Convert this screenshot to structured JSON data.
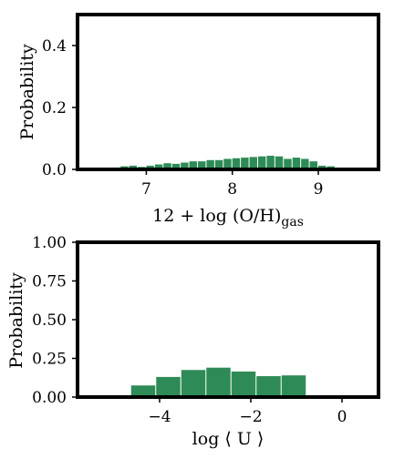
{
  "chart_data": [
    {
      "type": "bar",
      "xlabel": "12 + log (O/H)",
      "xlabel_subscript": "gas",
      "ylabel": "Probability",
      "xlim": [
        6.2,
        9.7
      ],
      "ylim": [
        0.0,
        0.5
      ],
      "xticks": [
        7,
        8,
        9
      ],
      "yticks": [
        0.0,
        0.2,
        0.4
      ],
      "ytick_labels": [
        "0.0",
        "0.2",
        "0.4"
      ],
      "bar_color": "#2e8b57",
      "bin_width": 0.1,
      "bins": [
        {
          "x": 6.55,
          "y": 0.004
        },
        {
          "x": 6.65,
          "y": 0.006
        },
        {
          "x": 6.75,
          "y": 0.01
        },
        {
          "x": 6.85,
          "y": 0.012
        },
        {
          "x": 6.95,
          "y": 0.008
        },
        {
          "x": 7.05,
          "y": 0.012
        },
        {
          "x": 7.15,
          "y": 0.016
        },
        {
          "x": 7.25,
          "y": 0.02
        },
        {
          "x": 7.35,
          "y": 0.018
        },
        {
          "x": 7.45,
          "y": 0.022
        },
        {
          "x": 7.55,
          "y": 0.026
        },
        {
          "x": 7.65,
          "y": 0.026
        },
        {
          "x": 7.75,
          "y": 0.03
        },
        {
          "x": 7.85,
          "y": 0.03
        },
        {
          "x": 7.95,
          "y": 0.034
        },
        {
          "x": 8.05,
          "y": 0.036
        },
        {
          "x": 8.15,
          "y": 0.038
        },
        {
          "x": 8.25,
          "y": 0.04
        },
        {
          "x": 8.35,
          "y": 0.042
        },
        {
          "x": 8.45,
          "y": 0.044
        },
        {
          "x": 8.55,
          "y": 0.042
        },
        {
          "x": 8.65,
          "y": 0.034
        },
        {
          "x": 8.75,
          "y": 0.038
        },
        {
          "x": 8.85,
          "y": 0.034
        },
        {
          "x": 8.95,
          "y": 0.026
        },
        {
          "x": 9.05,
          "y": 0.012
        },
        {
          "x": 9.15,
          "y": 0.01
        },
        {
          "x": 9.25,
          "y": 0.004
        },
        {
          "x": 9.35,
          "y": 0.002
        }
      ]
    },
    {
      "type": "bar",
      "xlabel": "log ⟨ U ⟩",
      "ylabel": "Probability",
      "xlim": [
        -5.8,
        0.8
      ],
      "ylim": [
        0.0,
        1.0
      ],
      "xticks": [
        -4,
        -2,
        0
      ],
      "xtick_labels": [
        "−4",
        "−2",
        "0"
      ],
      "yticks": [
        0.0,
        0.25,
        0.5,
        0.75,
        1.0
      ],
      "ytick_labels": [
        "0.00",
        "0.25",
        "0.50",
        "0.75",
        "1.00"
      ],
      "bar_color": "#2e8b57",
      "bin_width": 0.55,
      "bins": [
        {
          "x": -4.9,
          "y": 0.01
        },
        {
          "x": -4.35,
          "y": 0.075
        },
        {
          "x": -3.8,
          "y": 0.13
        },
        {
          "x": -3.25,
          "y": 0.175
        },
        {
          "x": -2.7,
          "y": 0.19
        },
        {
          "x": -2.15,
          "y": 0.165
        },
        {
          "x": -1.6,
          "y": 0.135
        },
        {
          "x": -1.05,
          "y": 0.14
        }
      ]
    }
  ]
}
